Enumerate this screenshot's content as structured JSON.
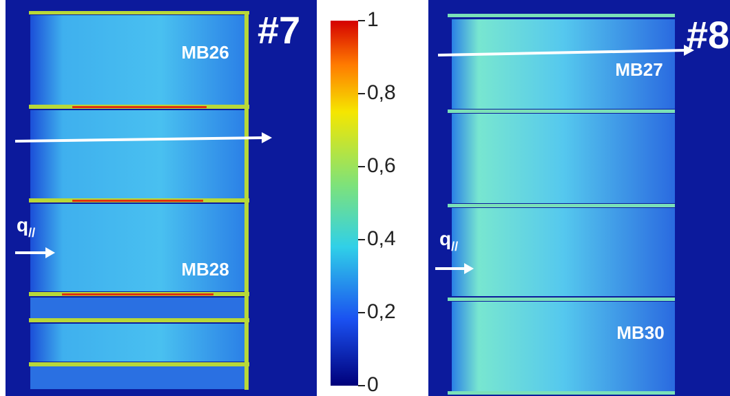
{
  "panels": [
    {
      "label": "#7",
      "samples": [
        "MB26",
        "MB28"
      ],
      "q_label": {
        "main": "q",
        "sub": "//"
      }
    },
    {
      "label": "#8",
      "samples": [
        "MB27",
        "MB30"
      ],
      "q_label": {
        "main": "q",
        "sub": "//"
      }
    }
  ],
  "colorbar": {
    "range": [
      0,
      1
    ],
    "ticks": [
      0,
      {
        "value": 0.2,
        "label": "0,2"
      },
      {
        "value": 0.4,
        "label": "0,4"
      },
      {
        "value": 0.6,
        "label": "0,6"
      },
      {
        "value": 0.8,
        "label": "0,8"
      },
      1
    ]
  }
}
